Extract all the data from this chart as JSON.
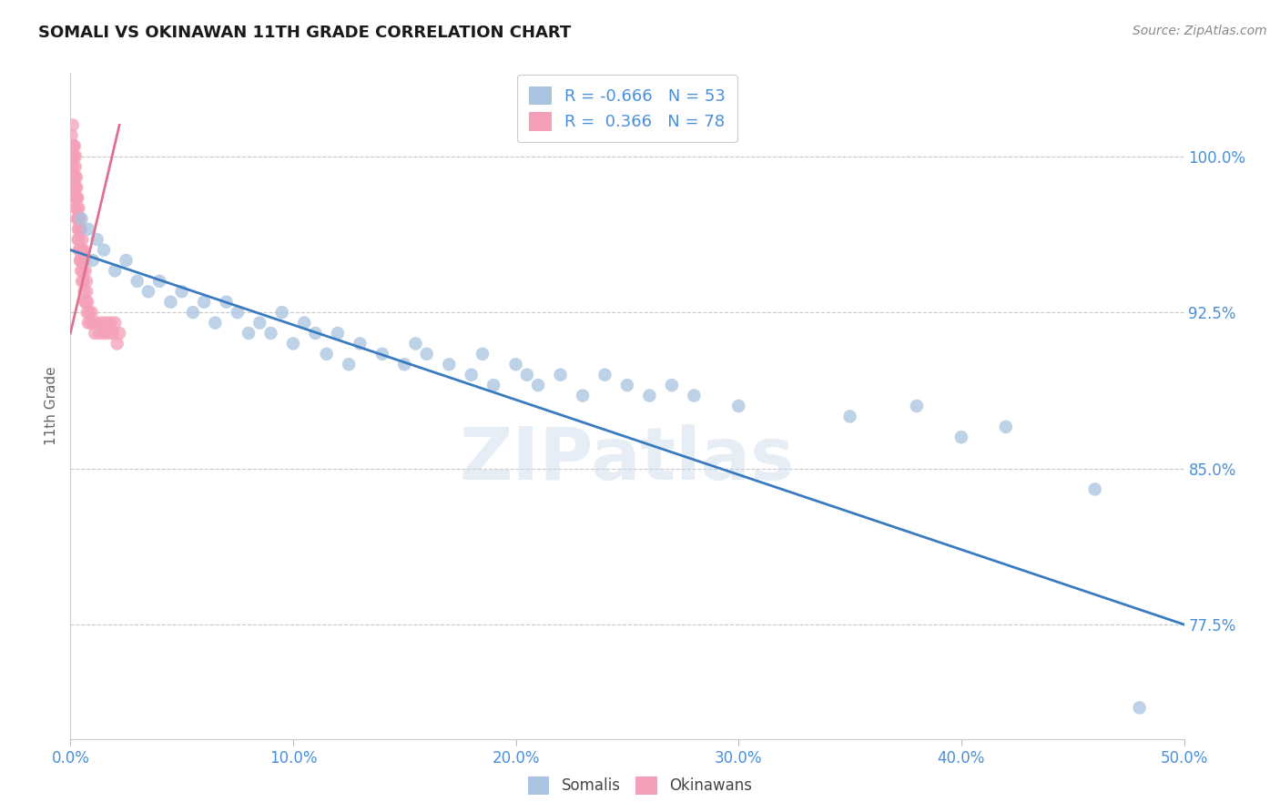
{
  "title": "SOMALI VS OKINAWAN 11TH GRADE CORRELATION CHART",
  "source": "Source: ZipAtlas.com",
  "ylabel": "11th Grade",
  "xlim": [
    0.0,
    50.0
  ],
  "ylim": [
    72.0,
    104.0
  ],
  "yticks": [
    77.5,
    85.0,
    92.5,
    100.0
  ],
  "xticks": [
    0.0,
    10.0,
    20.0,
    30.0,
    40.0,
    50.0
  ],
  "somali_R": -0.666,
  "somali_N": 53,
  "okinawan_R": 0.366,
  "okinawan_N": 78,
  "somali_color": "#a8c4e0",
  "okinawan_color": "#f4a0b8",
  "somali_line_color": "#3a7bbf",
  "okinawan_line_color": "#e07090",
  "legend_label_1": "Somalis",
  "legend_label_2": "Okinawans",
  "somali_x": [
    0.5,
    0.8,
    1.0,
    1.2,
    1.5,
    2.0,
    2.5,
    3.0,
    3.5,
    4.0,
    4.5,
    5.0,
    5.5,
    6.0,
    6.5,
    7.0,
    7.5,
    8.0,
    8.5,
    9.0,
    9.5,
    10.0,
    10.5,
    11.0,
    11.5,
    12.0,
    12.5,
    13.0,
    14.0,
    15.0,
    15.5,
    16.0,
    17.0,
    18.0,
    18.5,
    19.0,
    20.0,
    20.5,
    21.0,
    22.0,
    23.0,
    24.0,
    25.0,
    26.0,
    27.0,
    28.0,
    30.0,
    35.0,
    38.0,
    40.0,
    42.0,
    46.0,
    48.0
  ],
  "somali_y": [
    97.0,
    96.5,
    95.0,
    96.0,
    95.5,
    94.5,
    95.0,
    94.0,
    93.5,
    94.0,
    93.0,
    93.5,
    92.5,
    93.0,
    92.0,
    93.0,
    92.5,
    91.5,
    92.0,
    91.5,
    92.5,
    91.0,
    92.0,
    91.5,
    90.5,
    91.5,
    90.0,
    91.0,
    90.5,
    90.0,
    91.0,
    90.5,
    90.0,
    89.5,
    90.5,
    89.0,
    90.0,
    89.5,
    89.0,
    89.5,
    88.5,
    89.5,
    89.0,
    88.5,
    89.0,
    88.5,
    88.0,
    87.5,
    88.0,
    86.5,
    87.0,
    84.0,
    73.5
  ],
  "okinawan_x": [
    0.05,
    0.08,
    0.1,
    0.12,
    0.13,
    0.15,
    0.17,
    0.18,
    0.2,
    0.22,
    0.23,
    0.25,
    0.27,
    0.28,
    0.3,
    0.32,
    0.33,
    0.35,
    0.37,
    0.38,
    0.4,
    0.42,
    0.43,
    0.45,
    0.47,
    0.48,
    0.5,
    0.52,
    0.53,
    0.55,
    0.57,
    0.58,
    0.6,
    0.62,
    0.63,
    0.65,
    0.67,
    0.7,
    0.72,
    0.73,
    0.75,
    0.77,
    0.8,
    0.85,
    0.9,
    0.95,
    1.0,
    1.1,
    1.2,
    1.3,
    1.4,
    1.5,
    1.6,
    1.7,
    1.8,
    1.9,
    2.0,
    2.1,
    2.2,
    0.06,
    0.09,
    0.11,
    0.14,
    0.16,
    0.19,
    0.21,
    0.24,
    0.26,
    0.29,
    0.31,
    0.34,
    0.36,
    0.39,
    0.41,
    0.44,
    0.46,
    0.49,
    0.51
  ],
  "okinawan_y": [
    101.0,
    100.0,
    101.5,
    99.5,
    100.5,
    100.0,
    99.0,
    100.5,
    98.5,
    99.5,
    100.0,
    98.0,
    99.0,
    98.5,
    97.5,
    98.0,
    97.0,
    96.5,
    97.5,
    96.0,
    96.5,
    95.5,
    97.0,
    95.0,
    96.5,
    94.5,
    95.5,
    94.0,
    96.0,
    94.5,
    95.5,
    94.0,
    95.0,
    93.5,
    95.0,
    93.0,
    94.5,
    93.0,
    94.0,
    93.5,
    92.5,
    93.0,
    92.0,
    92.5,
    92.0,
    92.5,
    92.0,
    91.5,
    92.0,
    91.5,
    92.0,
    91.5,
    92.0,
    91.5,
    92.0,
    91.5,
    92.0,
    91.0,
    91.5,
    99.5,
    100.5,
    99.0,
    100.0,
    98.5,
    99.0,
    98.5,
    98.0,
    97.5,
    98.0,
    97.0,
    96.0,
    97.0,
    95.5,
    96.5,
    95.0,
    95.5,
    95.0,
    95.5
  ],
  "blue_trendline_x": [
    0.0,
    50.0
  ],
  "blue_trendline_y": [
    95.5,
    77.5
  ],
  "pink_trendline_x": [
    0.0,
    2.2
  ],
  "pink_trendline_y": [
    91.5,
    101.5
  ],
  "watermark": "ZIPatlas",
  "background_color": "#ffffff",
  "grid_color": "#c8c8c8",
  "tick_color": "#4a90d9",
  "label_color": "#666666"
}
